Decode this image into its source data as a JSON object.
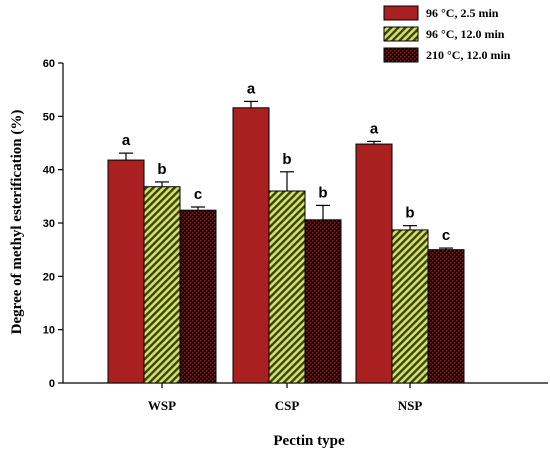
{
  "chart_data": {
    "type": "bar",
    "title": "",
    "xlabel": "Pectin type",
    "ylabel": "Degree of methyl esterification (%)",
    "ylim": [
      0,
      60
    ],
    "yticks": [
      0,
      10,
      20,
      30,
      40,
      50,
      60
    ],
    "categories": [
      "WSP",
      "CSP",
      "NSP"
    ],
    "legend_position": "top-right",
    "grid": false,
    "series": [
      {
        "name": "96 °C, 2.5 min",
        "values": [
          41.8,
          51.6,
          44.8
        ],
        "errors": [
          1.3,
          1.2,
          0.5
        ],
        "sig": [
          "a",
          "a",
          "a"
        ],
        "color": "#aa1f1f",
        "pattern": "solid"
      },
      {
        "name": "96 °C, 12.0 min",
        "values": [
          36.8,
          36.0,
          28.7
        ],
        "errors": [
          0.9,
          3.6,
          0.8
        ],
        "sig": [
          "b",
          "b",
          "b"
        ],
        "color": "#8a9a2c",
        "pattern": "diagonal-hatch"
      },
      {
        "name": "210 °C, 12.0 min",
        "values": [
          32.4,
          30.6,
          25.0
        ],
        "errors": [
          0.6,
          2.7,
          0.3
        ],
        "sig": [
          "c",
          "b",
          "c"
        ],
        "color": "#1a0606",
        "pattern": "crosshatch"
      }
    ]
  }
}
